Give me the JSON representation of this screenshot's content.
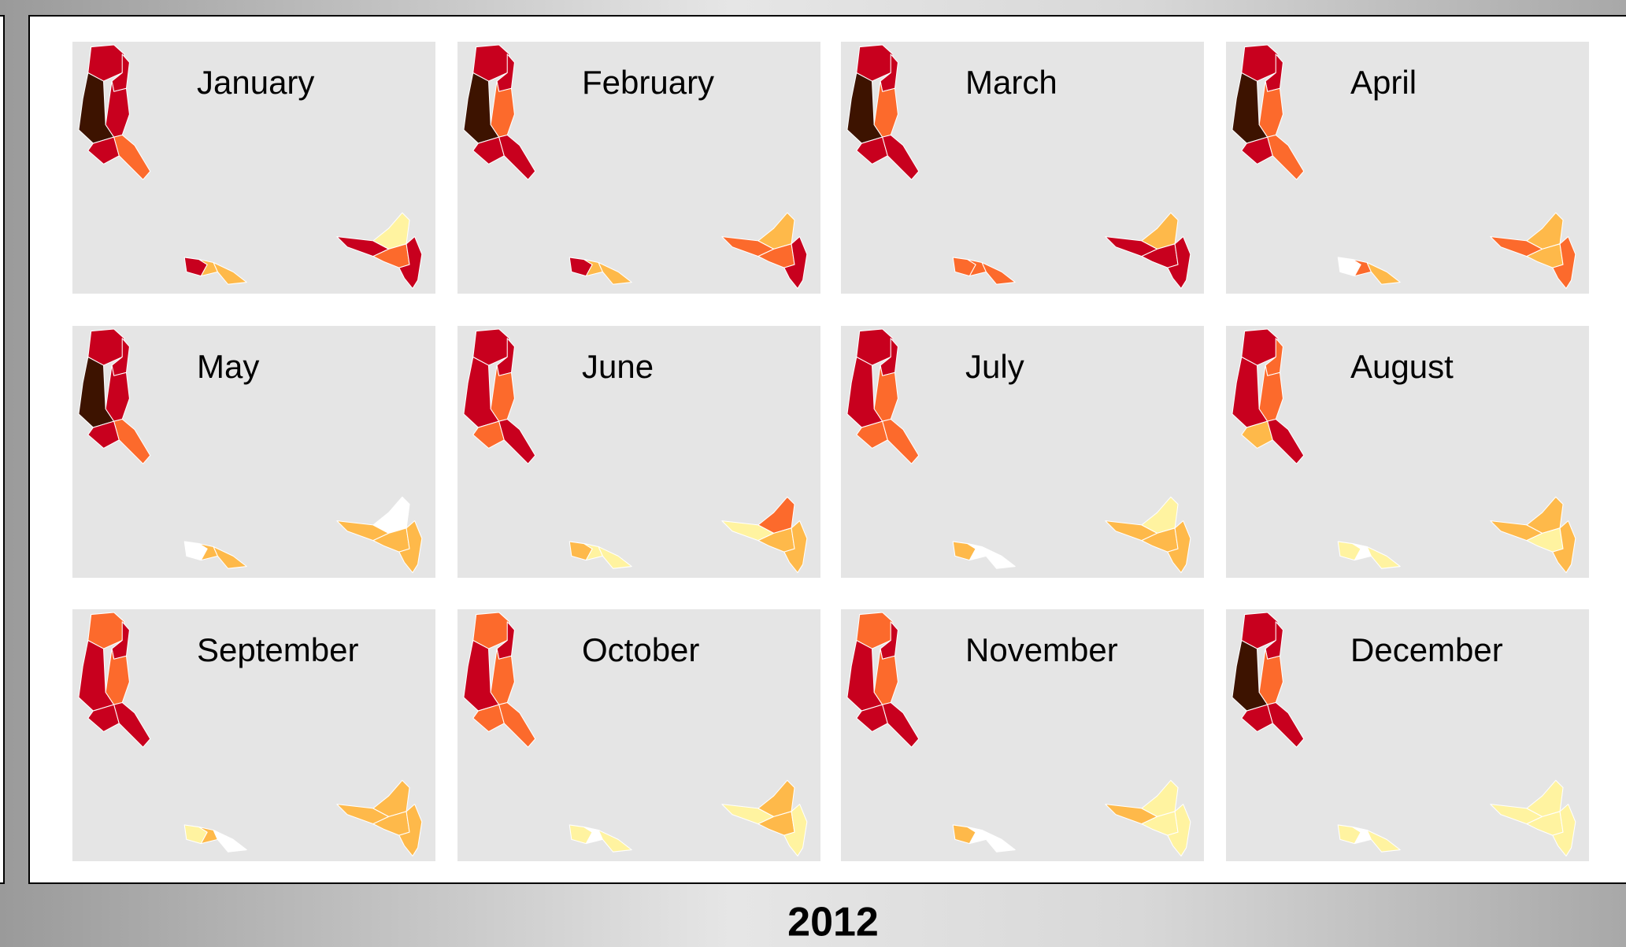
{
  "title": "2012",
  "months": [
    {
      "name": "January",
      "fills": [
        "#c8001e",
        "#c8001e",
        "#3d1300",
        "#c8001e",
        "#c8001e",
        "#fc6a2c",
        "#c8001e",
        "#feb94a",
        "#feb94a",
        "#c8001e",
        "#fff3a0",
        "#fc6a2c",
        "#c8001e"
      ]
    },
    {
      "name": "February",
      "fills": [
        "#c8001e",
        "#c8001e",
        "#3d1300",
        "#fc6a2c",
        "#c8001e",
        "#c8001e",
        "#c8001e",
        "#feb94a",
        "#feb94a",
        "#fc6a2c",
        "#feb94a",
        "#fc6a2c",
        "#c8001e"
      ]
    },
    {
      "name": "March",
      "fills": [
        "#c8001e",
        "#c8001e",
        "#3d1300",
        "#fc6a2c",
        "#c8001e",
        "#c8001e",
        "#fc6a2c",
        "#fc6a2c",
        "#fc6a2c",
        "#c8001e",
        "#feb94a",
        "#c8001e",
        "#c8001e"
      ]
    },
    {
      "name": "April",
      "fills": [
        "#c8001e",
        "#c8001e",
        "#3d1300",
        "#fc6a2c",
        "#c8001e",
        "#fc6a2c",
        "#ffffff",
        "#fc6a2c",
        "#feb94a",
        "#fc6a2c",
        "#feb94a",
        "#feb94a",
        "#fc6a2c"
      ]
    },
    {
      "name": "May",
      "fills": [
        "#c8001e",
        "#c8001e",
        "#3d1300",
        "#c8001e",
        "#c8001e",
        "#fc6a2c",
        "#ffffff",
        "#feb94a",
        "#feb94a",
        "#feb94a",
        "#ffffff",
        "#feb94a",
        "#feb94a"
      ]
    },
    {
      "name": "June",
      "fills": [
        "#c8001e",
        "#c8001e",
        "#c8001e",
        "#fc6a2c",
        "#fc6a2c",
        "#c8001e",
        "#feb94a",
        "#fff3a0",
        "#fff3a0",
        "#fff3a0",
        "#fc6a2c",
        "#feb94a",
        "#feb94a"
      ]
    },
    {
      "name": "July",
      "fills": [
        "#c8001e",
        "#c8001e",
        "#c8001e",
        "#fc6a2c",
        "#fc6a2c",
        "#fc6a2c",
        "#feb94a",
        "#ffffff",
        "#ffffff",
        "#feb94a",
        "#fff3a0",
        "#feb94a",
        "#feb94a"
      ]
    },
    {
      "name": "August",
      "fills": [
        "#c8001e",
        "#fc6a2c",
        "#c8001e",
        "#fc6a2c",
        "#feb94a",
        "#c8001e",
        "#fff3a0",
        "#ffffff",
        "#fff3a0",
        "#feb94a",
        "#feb94a",
        "#fff3a0",
        "#feb94a"
      ]
    },
    {
      "name": "September",
      "fills": [
        "#fc6a2c",
        "#c8001e",
        "#c8001e",
        "#fc6a2c",
        "#c8001e",
        "#c8001e",
        "#fff3a0",
        "#feb94a",
        "#ffffff",
        "#feb94a",
        "#feb94a",
        "#feb94a",
        "#feb94a"
      ]
    },
    {
      "name": "October",
      "fills": [
        "#fc6a2c",
        "#c8001e",
        "#c8001e",
        "#fc6a2c",
        "#fc6a2c",
        "#fc6a2c",
        "#fff3a0",
        "#ffffff",
        "#fff3a0",
        "#fff3a0",
        "#feb94a",
        "#feb94a",
        "#fff3a0"
      ]
    },
    {
      "name": "November",
      "fills": [
        "#fc6a2c",
        "#c8001e",
        "#c8001e",
        "#fc6a2c",
        "#c8001e",
        "#c8001e",
        "#feb94a",
        "#ffffff",
        "#ffffff",
        "#feb94a",
        "#fff3a0",
        "#fff3a0",
        "#fff3a0"
      ]
    },
    {
      "name": "December",
      "fills": [
        "#c8001e",
        "#c8001e",
        "#3d1300",
        "#fc6a2c",
        "#c8001e",
        "#c8001e",
        "#fff3a0",
        "#ffffff",
        "#fff3a0",
        "#fff3a0",
        "#fff3a0",
        "#fff3a0",
        "#fff3a0"
      ]
    }
  ]
}
